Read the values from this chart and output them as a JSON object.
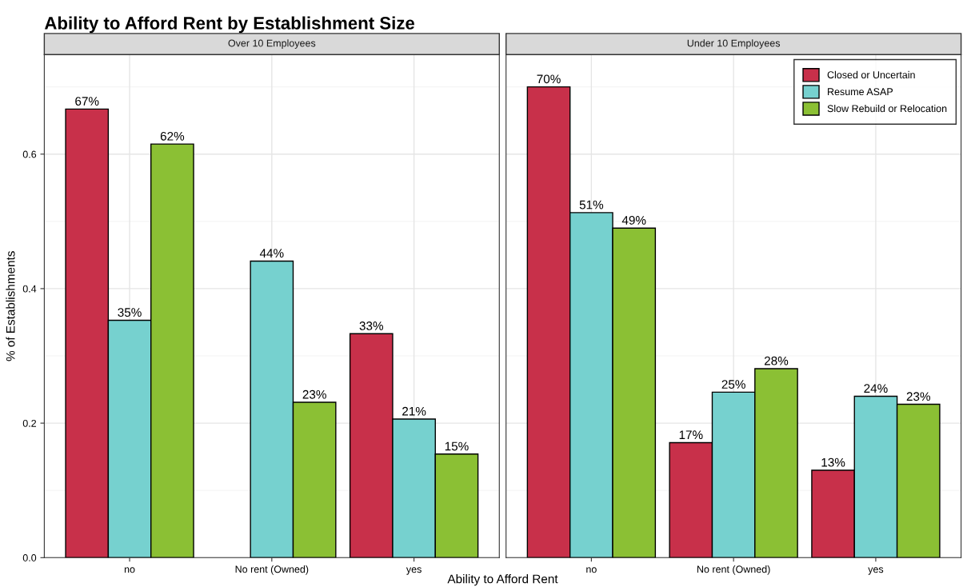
{
  "chart_data": [
    {
      "type": "bar",
      "title": "Ability to Afford Rent by Establishment Size",
      "subtitle": "Over 10 Employees",
      "xlabel": "Ability to Afford Rent",
      "ylabel": "% of Establishments",
      "categories": [
        "no",
        "No rent (Owned)",
        "yes"
      ],
      "series": [
        {
          "color": "#c8304a",
          "values": [
            0.667,
            null,
            0.333
          ],
          "value_labels": [
            "67%",
            null,
            "33%"
          ]
        },
        {
          "color": "#76d1cf",
          "values": [
            0.353,
            0.441,
            0.206
          ],
          "value_labels": [
            "35%",
            "44%",
            "21%"
          ]
        },
        {
          "color": "#8bc034",
          "values": [
            0.615,
            0.231,
            0.154
          ],
          "value_labels": [
            "62%",
            "23%",
            "15%"
          ]
        }
      ],
      "ylim": [
        0,
        0.748
      ],
      "yticks": [
        {
          "value": 0,
          "label": "0.0"
        },
        {
          "value": 0.2,
          "label": "0.2"
        },
        {
          "value": 0.4,
          "label": "0.4"
        },
        {
          "value": 0.6,
          "label": "0.6"
        }
      ],
      "grid": true,
      "legend": false
    },
    {
      "type": "bar",
      "subtitle": "Under 10 Employees",
      "categories": [
        "no",
        "No rent (Owned)",
        "yes"
      ],
      "series": [
        {
          "name": "Closed or Uncertain",
          "color": "#c8304a",
          "values": [
            0.7,
            0.171,
            0.13
          ],
          "value_labels": [
            "70%",
            "17%",
            "13%"
          ]
        },
        {
          "name": "Resume ASAP",
          "color": "#76d1cf",
          "values": [
            0.513,
            0.246,
            0.24
          ],
          "value_labels": [
            "51%",
            "25%",
            "24%"
          ]
        },
        {
          "name": "Slow Rebuild or Relocation",
          "color": "#8bc034",
          "values": [
            0.49,
            0.281,
            0.228
          ],
          "value_labels": [
            "49%",
            "28%",
            "23%"
          ]
        }
      ],
      "ylim": [
        0,
        0.748
      ],
      "yticks": [
        {
          "value": 0,
          "label": null
        },
        {
          "value": 0.2,
          "label": null
        },
        {
          "value": 0.4,
          "label": null
        },
        {
          "value": 0.6,
          "label": null
        }
      ],
      "grid": true,
      "legend": "top right",
      "tick_labels": "x"
    }
  ]
}
